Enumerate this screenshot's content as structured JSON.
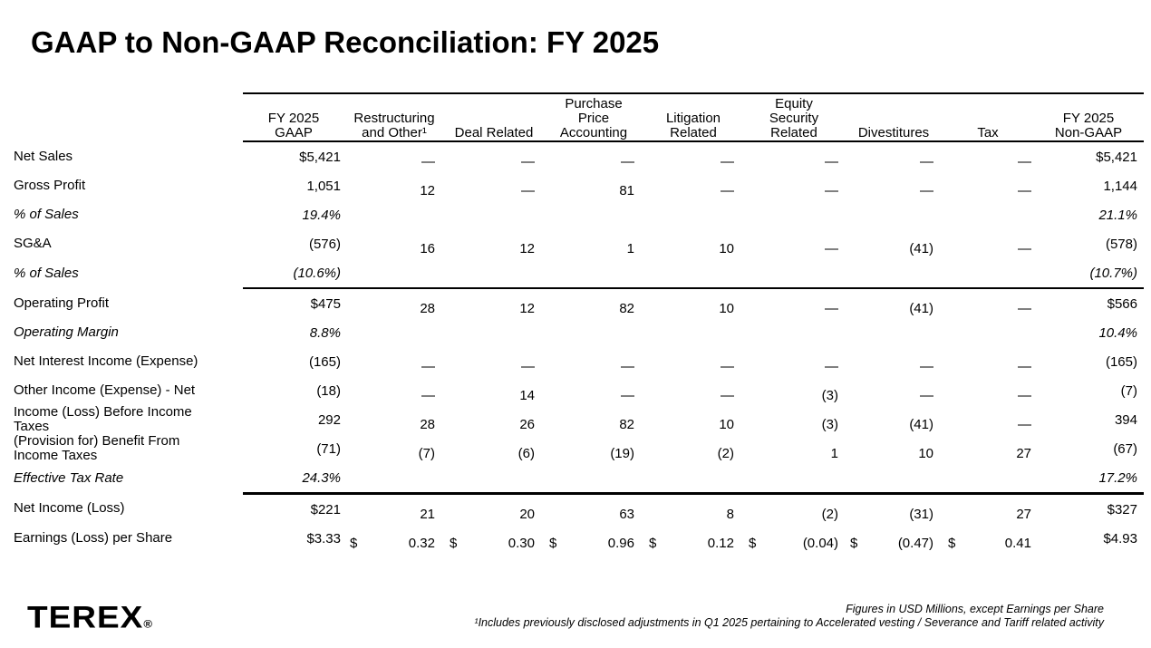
{
  "title": "GAAP to Non-GAAP Reconciliation: FY 2025",
  "logo": {
    "brand": "TEREX",
    "registered_mark": "®"
  },
  "footnotes": {
    "figures_note": "Figures in  USD Millions, except Earnings per Share",
    "footnote_1": "¹Includes previously disclosed adjustments in Q1 2025 pertaining to Accelerated vesting / Severance and Tariff related activity"
  },
  "table": {
    "eps_dollar_sign": "$",
    "columns": [
      {
        "id": "label",
        "label": ""
      },
      {
        "id": "gaap",
        "label": "FY 2025\nGAAP"
      },
      {
        "id": "restructuring",
        "label": "Restructuring\nand Other¹"
      },
      {
        "id": "deal",
        "label": "Deal Related"
      },
      {
        "id": "ppa",
        "label": "Purchase\nPrice\nAccounting"
      },
      {
        "id": "litigation",
        "label": "Litigation\nRelated"
      },
      {
        "id": "equity",
        "label": "Equity\nSecurity\nRelated"
      },
      {
        "id": "divestitures",
        "label": "Divestitures"
      },
      {
        "id": "tax",
        "label": "Tax"
      },
      {
        "id": "nongaap",
        "label": "FY 2025\nNon-GAAP"
      }
    ],
    "rows": [
      {
        "label": "Net Sales",
        "values": [
          "$5,421",
          "—",
          "—",
          "—",
          "—",
          "—",
          "—",
          "—",
          "$5,421"
        ]
      },
      {
        "label": "Gross Profit",
        "values": [
          "1,051",
          "12",
          "—",
          "81",
          "—",
          "—",
          "—",
          "—",
          "1,144"
        ]
      },
      {
        "label": "% of Sales",
        "italic": true,
        "indent": true,
        "values": [
          "19.4%",
          "",
          "",
          "",
          "",
          "",
          "",
          "",
          "21.1%"
        ]
      },
      {
        "label": "SG&A",
        "values": [
          "(576)",
          "16",
          "12",
          "1",
          "10",
          "—",
          "(41)",
          "—",
          "(578)"
        ]
      },
      {
        "label": "% of Sales",
        "italic": true,
        "indent": true,
        "rule_below": "normal",
        "values": [
          "(10.6%)",
          "",
          "",
          "",
          "",
          "",
          "",
          "",
          "(10.7%)"
        ]
      },
      {
        "label": "Operating Profit",
        "values": [
          "$475",
          "28",
          "12",
          "82",
          "10",
          "—",
          "(41)",
          "—",
          "$566"
        ]
      },
      {
        "label": "Operating Margin",
        "italic": true,
        "indent": true,
        "values": [
          "8.8%",
          "",
          "",
          "",
          "",
          "",
          "",
          "",
          "10.4%"
        ]
      },
      {
        "label": "Net Interest Income (Expense)",
        "values": [
          "(165)",
          "—",
          "—",
          "—",
          "—",
          "—",
          "—",
          "—",
          "(165)"
        ]
      },
      {
        "label": "Other Income (Expense) - Net",
        "values": [
          "(18)",
          "—",
          "14",
          "—",
          "—",
          "(3)",
          "—",
          "—",
          "(7)"
        ]
      },
      {
        "label": "Income (Loss) Before Income\nTaxes",
        "values": [
          "292",
          "28",
          "26",
          "82",
          "10",
          "(3)",
          "(41)",
          "—",
          "394"
        ]
      },
      {
        "label": "(Provision for) Benefit From\nIncome Taxes",
        "values": [
          "(71)",
          "(7)",
          "(6)",
          "(19)",
          "(2)",
          "1",
          "10",
          "27",
          "(67)"
        ]
      },
      {
        "label": "Effective Tax Rate",
        "italic": true,
        "indent": true,
        "rule_below": "thick",
        "values": [
          "24.3%",
          "",
          "",
          "",
          "",
          "",
          "",
          "",
          "17.2%"
        ]
      },
      {
        "label": "Net Income (Loss)",
        "values": [
          "$221",
          "21",
          "20",
          "63",
          "8",
          "(2)",
          "(31)",
          "27",
          "$327"
        ]
      },
      {
        "label": "Earnings (Loss) per Share",
        "dollar_row": true,
        "values": [
          "$3.33",
          "0.32",
          "0.30",
          "0.96",
          "0.12",
          "(0.04)",
          "(0.47)",
          "0.41",
          "$4.93"
        ]
      }
    ]
  }
}
